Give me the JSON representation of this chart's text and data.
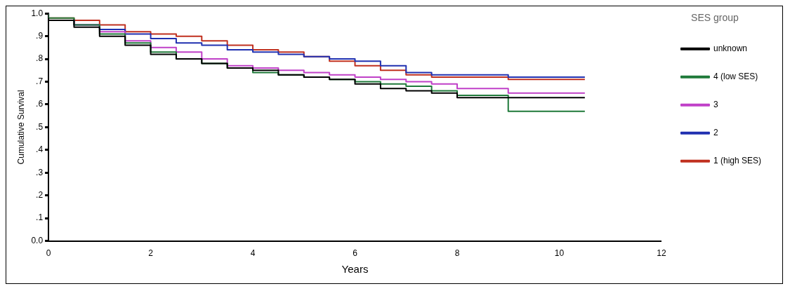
{
  "chart_data": {
    "type": "step",
    "xlabel": "Years",
    "ylabel": "Cumulative Survival",
    "legend_title": "SES group",
    "legend": "right",
    "grid": false,
    "marker": "none",
    "x": [
      0,
      0.5,
      1,
      1.5,
      2,
      2.5,
      3,
      3.5,
      4,
      4.5,
      5,
      5.5,
      6,
      6.5,
      7,
      7.5,
      8,
      9,
      10,
      10.5
    ],
    "xlim": [
      0,
      12
    ],
    "xticks": [
      0,
      2,
      4,
      6,
      8,
      10,
      12
    ],
    "ylim": [
      0,
      1
    ],
    "yticks": [
      {
        "value": 0,
        "label": "0.0"
      },
      {
        "value": 0.1,
        "label": ".1"
      },
      {
        "value": 0.2,
        "label": ".2"
      },
      {
        "value": 0.3,
        "label": ".3"
      },
      {
        "value": 0.4,
        "label": ".4"
      },
      {
        "value": 0.5,
        "label": ".5"
      },
      {
        "value": 0.6,
        "label": ".6"
      },
      {
        "value": 0.7,
        "label": ".7"
      },
      {
        "value": 0.8,
        "label": ".8"
      },
      {
        "value": 0.9,
        "label": ".9"
      },
      {
        "value": 1,
        "label": "1.0"
      }
    ],
    "series": [
      {
        "name": "unknown",
        "color": "#000000",
        "values": [
          0.98,
          0.97,
          0.94,
          0.9,
          0.86,
          0.82,
          0.8,
          0.78,
          0.76,
          0.75,
          0.73,
          0.72,
          0.71,
          0.69,
          0.67,
          0.66,
          0.65,
          0.63,
          0.63,
          0.63
        ]
      },
      {
        "name": "4 (low SES)",
        "color": "#1f7a3a",
        "values": [
          1,
          0.98,
          0.95,
          0.91,
          0.87,
          0.83,
          0.8,
          0.78,
          0.76,
          0.74,
          0.73,
          0.72,
          0.71,
          0.7,
          0.69,
          0.68,
          0.66,
          0.64,
          0.57,
          0.57
        ]
      },
      {
        "name": "3",
        "color": "#c040c8",
        "values": [
          1,
          0.97,
          0.95,
          0.92,
          0.88,
          0.85,
          0.83,
          0.8,
          0.77,
          0.76,
          0.75,
          0.74,
          0.73,
          0.72,
          0.71,
          0.7,
          0.69,
          0.67,
          0.65,
          0.65
        ]
      },
      {
        "name": "2",
        "color": "#2030b0",
        "values": [
          1,
          0.97,
          0.95,
          0.93,
          0.91,
          0.89,
          0.87,
          0.86,
          0.84,
          0.83,
          0.82,
          0.81,
          0.8,
          0.79,
          0.77,
          0.74,
          0.73,
          0.73,
          0.72,
          0.72
        ]
      },
      {
        "name": "1 (high SES)",
        "color": "#c0301f",
        "values": [
          1,
          0.98,
          0.97,
          0.95,
          0.92,
          0.91,
          0.9,
          0.88,
          0.86,
          0.84,
          0.83,
          0.81,
          0.79,
          0.77,
          0.75,
          0.73,
          0.72,
          0.72,
          0.71,
          0.71
        ]
      }
    ]
  }
}
